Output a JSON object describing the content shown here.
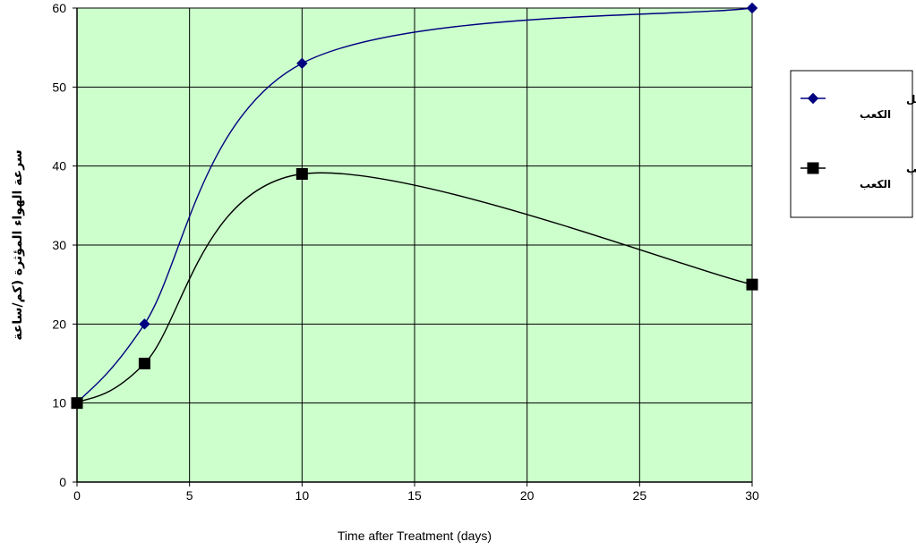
{
  "chart_data": {
    "type": "line",
    "xlabel": "Time after Treatment (days)",
    "ylabel": "سرعة الهواء المؤثرة (كم/ساعة",
    "xlim": [
      0,
      30
    ],
    "ylim": [
      0,
      60
    ],
    "x_ticks": [
      0,
      5,
      10,
      15,
      20,
      25,
      30
    ],
    "y_ticks": [
      0,
      10,
      20,
      30,
      40,
      50,
      60
    ],
    "grid": true,
    "plot_background": "#ccffcc",
    "legend_position": "right",
    "series": [
      {
        "name": "الحقن من أسفل الكعب",
        "legend_lines": [
          "الحقن من أسفل",
          "الكعب"
        ],
        "color": "#000080",
        "marker": "diamond",
        "x": [
          0,
          3,
          10,
          30
        ],
        "y": [
          10,
          20,
          53,
          60
        ]
      },
      {
        "name": "الحقن من جوانب الكعب",
        "legend_lines": [
          "الحقن من جوانب",
          "الكعب"
        ],
        "color": "#000000",
        "marker": "square",
        "x": [
          0,
          3,
          10,
          30
        ],
        "y": [
          10,
          15,
          39,
          25
        ]
      }
    ]
  }
}
